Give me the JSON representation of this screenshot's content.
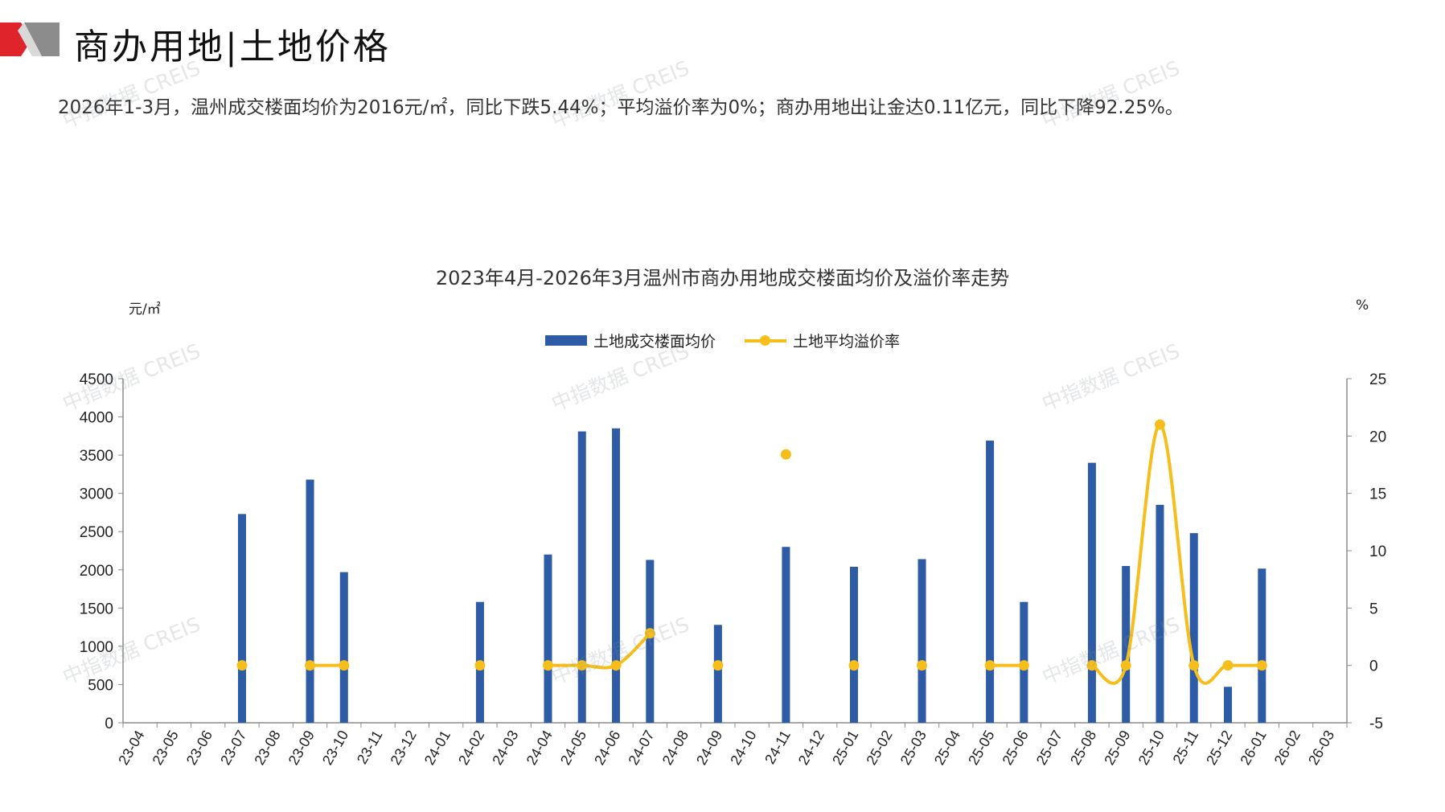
{
  "header": {
    "title": "商办用地|土地价格",
    "summary": "2026年1-3月，温州成交楼面均价为2016元/㎡，同比下跌5.44%；平均溢价率为0%；商办用地出让金达0.11亿元，同比下降92.25%。"
  },
  "watermark_text": "中指数据 CREIS",
  "colors": {
    "bar": "#2E5BA6",
    "line": "#F5BE1A",
    "logo_red": "#E0242B",
    "logo_gray": "#8C8C8C",
    "axis": "#8C8C8C"
  },
  "chart_data": {
    "type": "bar+line",
    "title": "2023年4月-2026年3月温州市商办用地成交楼面均价及溢价率走势",
    "y_left_unit": "元/㎡",
    "y_right_unit": "%",
    "y_left": {
      "min": 0,
      "max": 4500,
      "ticks": [
        0,
        500,
        1000,
        1500,
        2000,
        2500,
        3000,
        3500,
        4000,
        4500
      ]
    },
    "y_right": {
      "min": -5,
      "max": 25,
      "ticks": [
        -5,
        0,
        5,
        10,
        15,
        20,
        25
      ]
    },
    "grid": false,
    "legend_position": "top-center",
    "categories": [
      "23-04",
      "23-05",
      "23-06",
      "23-07",
      "23-08",
      "23-09",
      "23-10",
      "23-11",
      "23-12",
      "24-01",
      "24-02",
      "24-03",
      "24-04",
      "24-05",
      "24-06",
      "24-07",
      "24-08",
      "24-09",
      "24-10",
      "24-11",
      "24-12",
      "25-01",
      "25-02",
      "25-03",
      "25-04",
      "25-05",
      "25-06",
      "25-07",
      "25-08",
      "25-09",
      "25-10",
      "25-11",
      "25-12",
      "26-01",
      "26-02",
      "26-03"
    ],
    "series": [
      {
        "name": "土地成交楼面均价",
        "type": "bar",
        "axis": "left",
        "values": [
          null,
          null,
          null,
          2730,
          null,
          3180,
          1970,
          null,
          null,
          null,
          1580,
          null,
          2200,
          3810,
          3850,
          2130,
          null,
          1280,
          null,
          2300,
          null,
          2040,
          null,
          2140,
          null,
          3690,
          1580,
          null,
          3400,
          2050,
          2850,
          2480,
          470,
          2016,
          null,
          null
        ]
      },
      {
        "name": "土地平均溢价率",
        "type": "line",
        "axis": "right",
        "values": [
          null,
          null,
          null,
          0,
          null,
          0,
          0,
          null,
          null,
          null,
          0,
          null,
          0,
          0,
          0,
          2.8,
          null,
          0,
          null,
          18.4,
          null,
          0,
          null,
          0,
          null,
          0,
          0,
          null,
          0,
          0,
          21,
          0,
          0,
          0,
          null,
          null
        ]
      }
    ]
  }
}
